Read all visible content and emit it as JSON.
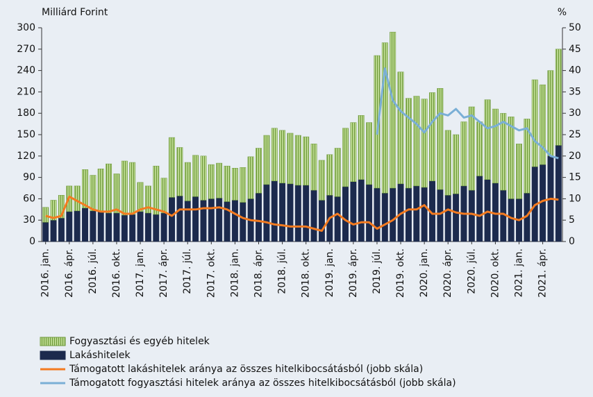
{
  "chart_data": {
    "type": "combo",
    "y_label": "Milliárd Forint",
    "y2_label": "%",
    "categories": [
      "2016. jan.",
      null,
      null,
      "2016. ápr.",
      null,
      null,
      "2016. júl.",
      null,
      null,
      "2016. okt.",
      null,
      null,
      "2017. jan.",
      null,
      null,
      "2017. ápr.",
      null,
      null,
      "2017. júl.",
      null,
      null,
      "2017. okt.",
      null,
      null,
      "2018. jan.",
      null,
      null,
      "2018. ápr.",
      null,
      null,
      "2018. júl.",
      null,
      null,
      "2018. okt.",
      null,
      null,
      "2019. jan.",
      null,
      null,
      "2019. ápr.",
      null,
      null,
      "2019. júl.",
      null,
      null,
      "2019. okt.",
      null,
      null,
      "2020. jan.",
      null,
      null,
      "2020. ápr.",
      null,
      null,
      "2020. júl.",
      null,
      null,
      "2020. okt.",
      null,
      null,
      "2021. jan.",
      null,
      null,
      "2021. ápr.",
      null,
      null
    ],
    "ylim": [
      0,
      300
    ],
    "yticks": [
      0,
      30,
      60,
      90,
      120,
      150,
      180,
      210,
      240,
      270,
      300
    ],
    "y2lim": [
      0,
      50
    ],
    "y2ticks": [
      0,
      5,
      10,
      15,
      20,
      25,
      30,
      35,
      40,
      45,
      50
    ],
    "series": [
      {
        "name": "Fogyasztási és egyéb hitelek",
        "type": "bar",
        "color": "#a6c977",
        "values": [
          21,
          28,
          32,
          36,
          35,
          54,
          50,
          60,
          69,
          55,
          76,
          73,
          41,
          38,
          68,
          49,
          84,
          68,
          54,
          58,
          62,
          48,
          49,
          50,
          45,
          49,
          59,
          63,
          69,
          74,
          74,
          71,
          70,
          68,
          65,
          56,
          57,
          68,
          82,
          83,
          90,
          87,
          186,
          211,
          219,
          157,
          126,
          126,
          124,
          124,
          142,
          91,
          83,
          90,
          117,
          76,
          112,
          104,
          108,
          115,
          77,
          104,
          122,
          112,
          120,
          135
        ]
      },
      {
        "name": "Lakáshitelek",
        "type": "bar",
        "color": "#1c2a4d",
        "values": [
          27,
          30,
          33,
          42,
          43,
          47,
          43,
          42,
          40,
          40,
          37,
          38,
          42,
          40,
          38,
          40,
          62,
          64,
          57,
          63,
          58,
          60,
          61,
          56,
          58,
          55,
          60,
          68,
          80,
          85,
          82,
          81,
          79,
          79,
          72,
          58,
          65,
          63,
          77,
          84,
          87,
          80,
          75,
          68,
          75,
          81,
          75,
          78,
          76,
          85,
          73,
          65,
          67,
          78,
          72,
          92,
          87,
          82,
          72,
          60,
          60,
          68,
          105,
          108,
          120,
          135
        ]
      },
      {
        "name": "Támogatott lakáshitelek aránya az összes hitelkibocsátásból (jobb skála)",
        "type": "line",
        "axis": "y2",
        "color": "#f47b20",
        "values": [
          6,
          5.5,
          6,
          10.5,
          9.5,
          8.5,
          7.5,
          7,
          7,
          7.5,
          6.5,
          6.5,
          7.5,
          8,
          7.5,
          7,
          6,
          7.5,
          7.5,
          7.5,
          7.8,
          7.8,
          8,
          7.5,
          6.5,
          5.5,
          5,
          4.8,
          4.5,
          4,
          3.8,
          3.5,
          3.5,
          3.5,
          3,
          2.5,
          5.5,
          6.5,
          5,
          4,
          4.5,
          4.5,
          3,
          4,
          5,
          6.5,
          7.5,
          7.5,
          8.5,
          6.5,
          6.5,
          7.5,
          6.8,
          6.5,
          6.5,
          6,
          7,
          6.5,
          6.5,
          5.5,
          5,
          6,
          8.5,
          9.5,
          10,
          9.8
        ]
      },
      {
        "name": "Támogatott fogyasztási hitelek aránya az összes hitelkibocsátásból (jobb skála)",
        "type": "line",
        "axis": "y2",
        "color": "#7aafd6",
        "values": [
          null,
          null,
          null,
          null,
          null,
          null,
          null,
          null,
          null,
          null,
          null,
          null,
          null,
          null,
          null,
          null,
          null,
          null,
          null,
          null,
          null,
          null,
          null,
          null,
          null,
          null,
          null,
          null,
          null,
          null,
          null,
          null,
          null,
          null,
          null,
          null,
          null,
          null,
          null,
          null,
          null,
          null,
          25,
          40.5,
          33,
          30.5,
          29,
          27.5,
          25.5,
          28,
          30,
          29.5,
          31,
          29,
          29.5,
          28,
          26.5,
          27,
          28,
          27,
          26,
          26.5,
          23.5,
          22,
          20,
          19.5
        ]
      }
    ]
  }
}
